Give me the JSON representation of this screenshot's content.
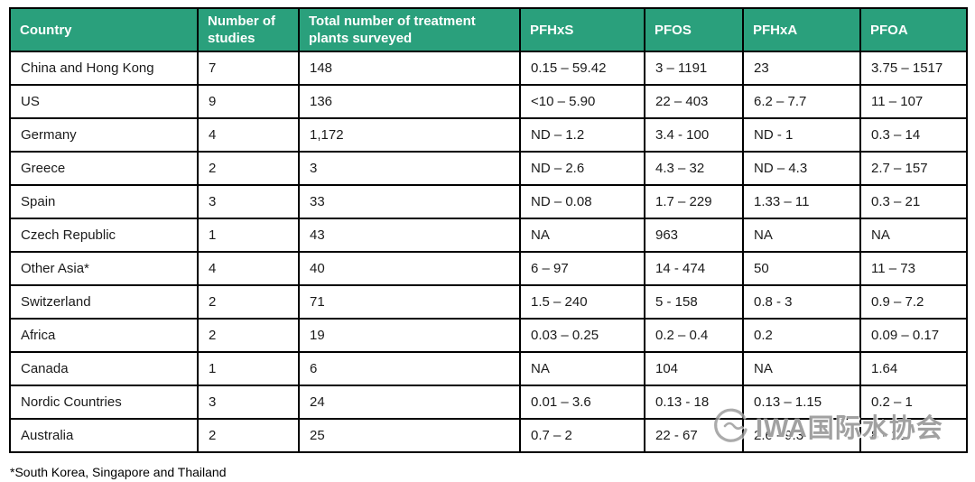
{
  "chart_data": {
    "type": "table",
    "columns": [
      "Country",
      "Number of studies",
      "Total number of treatment plants surveyed",
      "PFHxS",
      "PFOS",
      "PFHxA",
      "PFOA"
    ],
    "rows": [
      [
        "China and Hong Kong",
        "7",
        "148",
        "0.15 – 59.42",
        "3 – 1191",
        "23",
        "3.75 – 1517"
      ],
      [
        "US",
        "9",
        "136",
        "<10 – 5.90",
        "22 – 403",
        "6.2 – 7.7",
        "11 – 107"
      ],
      [
        "Germany",
        "4",
        "1,172",
        "ND – 1.2",
        "3.4 - 100",
        "ND - 1",
        "0.3 – 14"
      ],
      [
        "Greece",
        "2",
        "3",
        "ND – 2.6",
        "4.3 – 32",
        "ND – 4.3",
        "2.7 – 157"
      ],
      [
        "Spain",
        "3",
        "33",
        "ND – 0.08",
        "1.7 – 229",
        "1.33 – 11",
        "0.3 – 21"
      ],
      [
        "Czech Republic",
        "1",
        "43",
        "NA",
        "963",
        "NA",
        "NA"
      ],
      [
        "Other Asia*",
        "4",
        "40",
        "6 – 97",
        "14 - 474",
        "50",
        "11 – 73"
      ],
      [
        "Switzerland",
        "2",
        "71",
        "1.5 – 240",
        "5 - 158",
        "0.8 - 3",
        "0.9 – 7.2"
      ],
      [
        "Africa",
        "2",
        "19",
        "0.03 – 0.25",
        "0.2 – 0.4",
        "0.2",
        "0.09 – 0.17"
      ],
      [
        "Canada",
        "1",
        "6",
        "NA",
        "104",
        "NA",
        "1.64"
      ],
      [
        "Nordic Countries",
        "3",
        "24",
        "0.01 – 3.6",
        "0.13 - 18",
        "0.13 – 1.15",
        "0.2 – 1"
      ],
      [
        "Australia",
        "2",
        "25",
        "0.7 – 2",
        "22 - 67",
        "2.6 - 9.3",
        "8 - 11"
      ]
    ]
  },
  "footnote": "*South Korea, Singapore and Thailand",
  "watermark": {
    "text": "IWA国际水协会"
  },
  "colors": {
    "header_bg": "#2aa07c",
    "header_text": "#ffffff",
    "border": "#000000",
    "watermark": "#919191"
  }
}
